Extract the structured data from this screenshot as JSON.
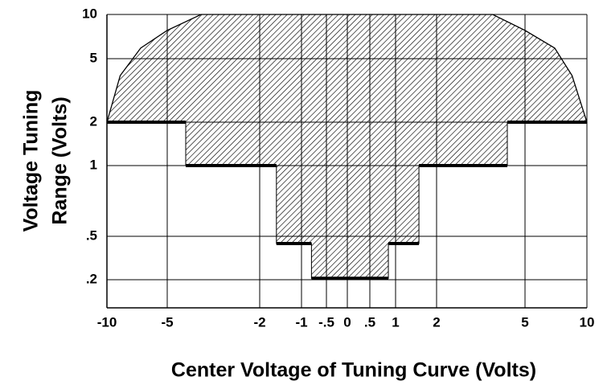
{
  "chart_data": {
    "type": "area",
    "y_label": [
      "Voltage Tuning",
      "Range (Volts)"
    ],
    "x_label": "Center Voltage of Tuning Curve (Volts)",
    "xlim": [
      -10,
      10
    ],
    "xticks": [
      -10,
      -5,
      -2,
      -1,
      {
        "value": -0.5,
        "label": "-.5"
      },
      0,
      {
        "value": 0.5,
        "label": ".5"
      },
      1,
      2,
      5,
      10
    ],
    "ylim": [
      0.1,
      10
    ],
    "yticks": [
      {
        "value": 0.2,
        "label": ".2"
      },
      {
        "value": 0.5,
        "label": ".5"
      },
      1,
      2,
      5,
      10
    ],
    "grid": true,
    "color": "#000000",
    "upper": {
      "x": [
        -10,
        -8.9,
        -7.2,
        -5,
        -3.9,
        3.9,
        5,
        7.4,
        8.8,
        10
      ],
      "y": [
        2,
        4.2,
        6.2,
        8.2,
        10,
        10,
        8.2,
        6.2,
        4.2,
        2
      ]
    },
    "lower": {
      "x": [
        -10,
        -4.4,
        -4.4,
        -1.6,
        -1.6,
        -0.8,
        -0.8,
        0.86,
        0.86,
        1.57,
        1.57,
        4.4,
        4.4,
        10
      ],
      "y": [
        2,
        2,
        1,
        1,
        0.45,
        0.45,
        0.21,
        0.21,
        0.45,
        0.45,
        1,
        1,
        2,
        2
      ]
    }
  }
}
